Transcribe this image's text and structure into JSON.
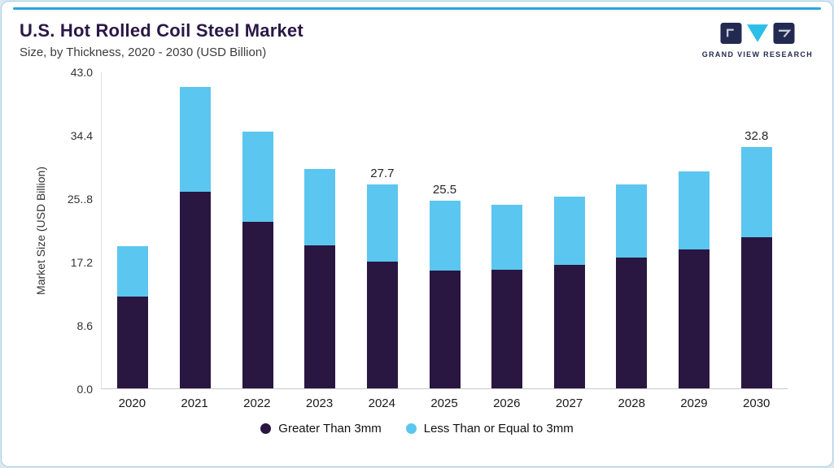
{
  "header": {
    "title": "U.S. Hot Rolled Coil Steel Market",
    "subtitle": "Size, by Thickness, 2020 - 2030 (USD Billion)"
  },
  "logo": {
    "text": "GRAND VIEW RESEARCH"
  },
  "chart_data": {
    "type": "bar",
    "stacked": true,
    "title": "U.S. Hot Rolled Coil Steel Market Size, by Thickness, 2020 - 2030 (USD Billion)",
    "categories": [
      "2020",
      "2021",
      "2022",
      "2023",
      "2024",
      "2025",
      "2026",
      "2027",
      "2028",
      "2029",
      "2030"
    ],
    "series": [
      {
        "name": "Greater Than 3mm",
        "color": "#291641",
        "values": [
          12.5,
          26.8,
          22.7,
          19.5,
          17.3,
          16.0,
          16.1,
          16.8,
          17.8,
          18.9,
          20.6
        ]
      },
      {
        "name": "Less Than or Equal to 3mm",
        "color": "#5bc6ef",
        "values": [
          6.9,
          14.2,
          12.2,
          10.3,
          10.4,
          9.5,
          8.9,
          9.3,
          9.9,
          10.6,
          12.2
        ]
      }
    ],
    "totals": [
      19.4,
      41.0,
      34.9,
      29.8,
      27.7,
      25.5,
      25.0,
      26.1,
      27.7,
      29.5,
      32.8
    ],
    "total_labels": [
      "",
      "",
      "",
      "",
      "27.7",
      "25.5",
      "",
      "",
      "",
      "",
      "32.8"
    ],
    "xlabel": "",
    "ylabel": "Market Size (USD Billion)",
    "ylim": [
      0,
      43.0
    ],
    "ytick_labels": [
      "0.0",
      "8.6",
      "17.2",
      "25..8",
      "34.4",
      "43.0"
    ],
    "grid": false,
    "legend_position": "bottom"
  },
  "legend": {
    "items": [
      {
        "label": "Greater Than 3mm",
        "color": "#291641"
      },
      {
        "label": "Less Than or Equal to 3mm",
        "color": "#5bc6ef"
      }
    ]
  }
}
